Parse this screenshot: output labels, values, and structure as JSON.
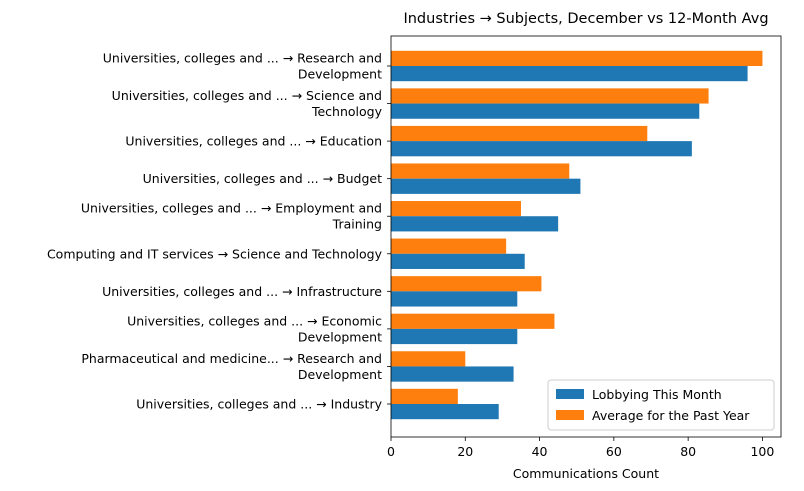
{
  "chart_data": {
    "type": "bar",
    "orientation": "horizontal",
    "title": "Industries → Subjects, December vs 12-Month Avg",
    "xlabel": "Communications Count",
    "ylabel": "",
    "xlim": [
      0,
      105
    ],
    "xticks": [
      0,
      20,
      40,
      60,
      80,
      100
    ],
    "grid": false,
    "legend_position": "lower-right",
    "categories": [
      [
        "Universities, colleges and ... → Research and",
        "Development"
      ],
      [
        "Universities, colleges and ... → Science and",
        "Technology"
      ],
      [
        "Universities, colleges and ... → Education"
      ],
      [
        "Universities, colleges and ... → Budget"
      ],
      [
        "Universities, colleges and ... → Employment and",
        "Training"
      ],
      [
        "Computing and IT services → Science and Technology"
      ],
      [
        "Universities, colleges and ... → Infrastructure"
      ],
      [
        "Universities, colleges and ... → Economic",
        "Development"
      ],
      [
        "Pharmaceutical and medicine... → Research and",
        "Development"
      ],
      [
        "Universities, colleges and ... → Industry"
      ]
    ],
    "series": [
      {
        "name": "Lobbying This Month",
        "color": "#1f77b4",
        "values": [
          96,
          83,
          81,
          51,
          45,
          36,
          34,
          34,
          33,
          29
        ]
      },
      {
        "name": "Average for the Past Year",
        "color": "#ff7f0e",
        "values": [
          100,
          85.5,
          69,
          48,
          35,
          31,
          40.5,
          44,
          20,
          18
        ]
      }
    ]
  }
}
